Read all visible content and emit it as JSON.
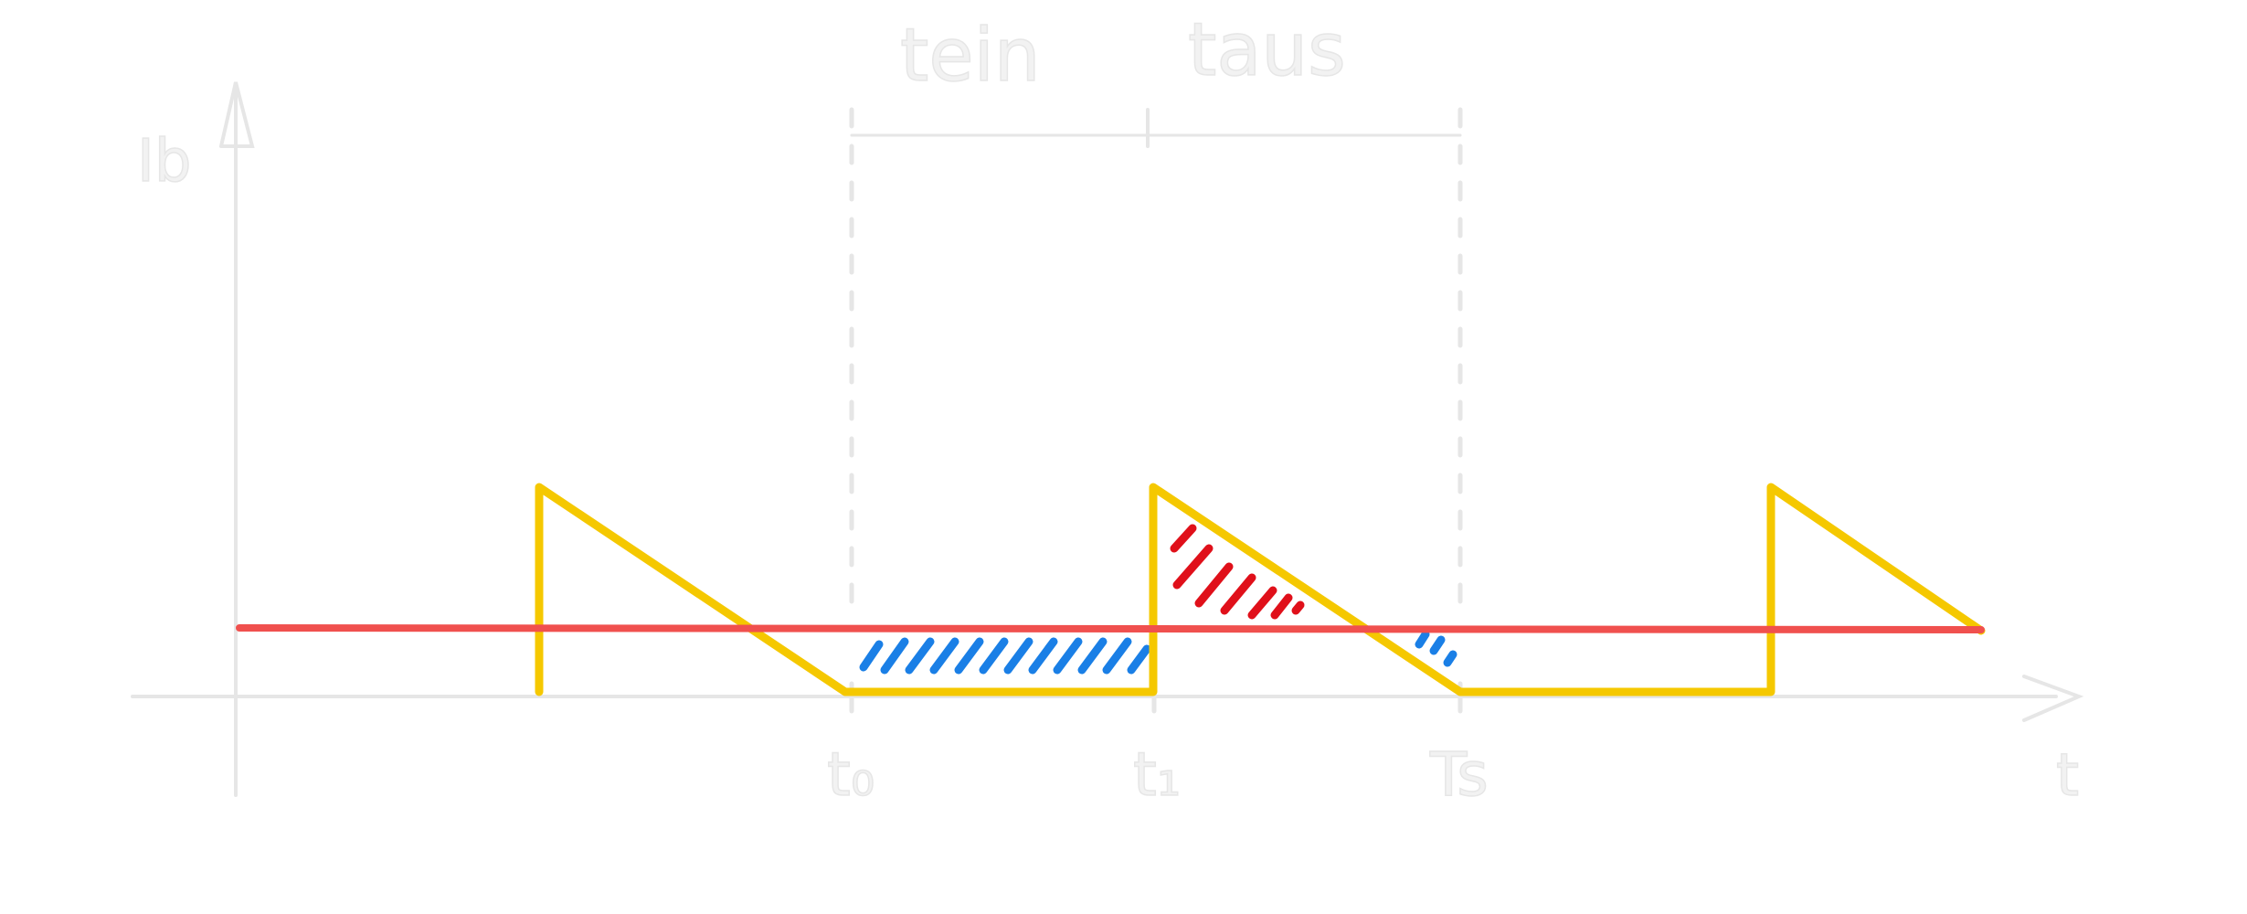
{
  "colors": {
    "background": "#ffffff",
    "axes": "#e6e6e6",
    "signal": "#f5c800",
    "average": "#f0504e",
    "hatch_positive": "#e0101a",
    "hatch_negative": "#1a7fe6"
  },
  "labels": {
    "y_axis": "Ib",
    "x_axis": "t",
    "t_on": "tein",
    "t_off": "taus",
    "tick_t0": "t₀",
    "tick_t1": "t₁",
    "tick_ts": "Ts"
  }
}
